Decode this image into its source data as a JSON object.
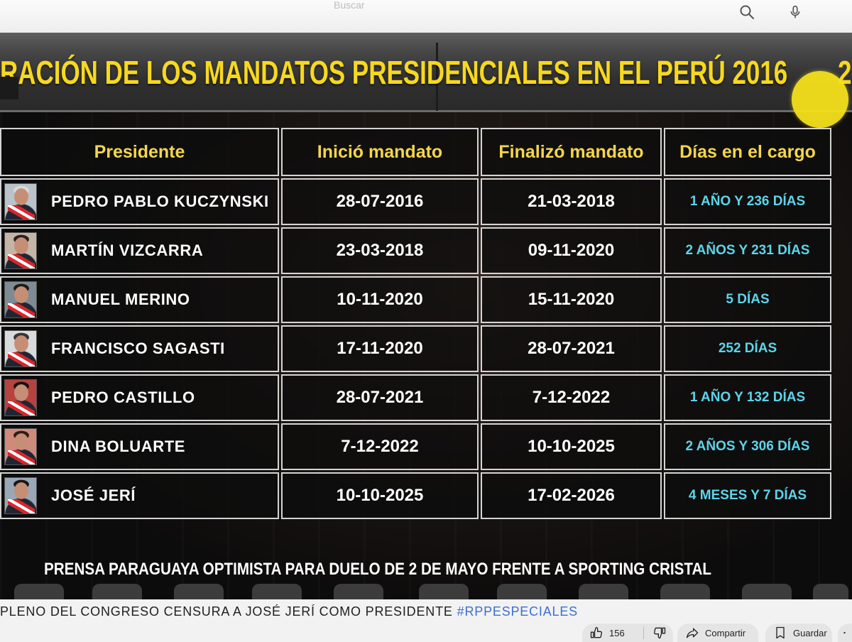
{
  "header": {
    "search_placeholder": "Buscar"
  },
  "video": {
    "banner_title": "RACIÓN DE LOS MANDATOS PRESIDENCIALES EN EL PERÚ 2016",
    "banner_title_tail": "2",
    "table": {
      "headers": [
        "Presidente",
        "Inició mandato",
        "Finalizó mandato",
        "Días en el cargo"
      ],
      "rows": [
        {
          "name": "PEDRO PABLO KUCZYNSKI",
          "start": "28-07-2016",
          "end": "21-03-2018",
          "days": "1 AÑO Y 236 DÍAS"
        },
        {
          "name": "MARTÍN VIZCARRA",
          "start": "23-03-2018",
          "end": "09-11-2020",
          "days": "2 AÑOS Y 231 DÍAS"
        },
        {
          "name": "MANUEL MERINO",
          "start": "10-11-2020",
          "end": "15-11-2020",
          "days": "5 DÍAS"
        },
        {
          "name": "FRANCISCO SAGASTI",
          "start": "17-11-2020",
          "end": "28-07-2021",
          "days": "252 DÍAS"
        },
        {
          "name": "PEDRO CASTILLO",
          "start": "28-07-2021",
          "end": "7-12-2022",
          "days": "1 AÑO Y 132 DÍAS"
        },
        {
          "name": "DINA BOLUARTE",
          "start": "7-12-2022",
          "end": "10-10-2025",
          "days": "2 AÑOS Y 306 DÍAS"
        },
        {
          "name": "JOSÉ JERÍ",
          "start": "10-10-2025",
          "end": "17-02-2026",
          "days": "4 MESES Y 7 DÍAS"
        }
      ]
    },
    "ticker": "PRENSA PARAGUAYA OPTIMISTA PARA DUELO DE 2 DE MAYO FRENTE A SPORTING CRISTAL"
  },
  "video_title": {
    "text": "PLENO DEL CONGRESO CENSURA A JOSÉ JERÍ COMO PRESIDENTE",
    "hashtag": "#RPPESPECIALES"
  },
  "actions": {
    "like_count": "156",
    "share_label": "Compartir",
    "save_label": "Guardar"
  },
  "icons": {
    "search": "search-icon",
    "mic": "mic-icon",
    "like": "thumbs-up-icon",
    "dislike": "thumbs-down-icon",
    "share": "share-arrow-icon",
    "save": "bookmark-icon",
    "more": "more-icon"
  },
  "colors": {
    "title_yellow": "#f7d81f",
    "header_yellow": "#f4d64b",
    "days_cyan": "#5dd4ea",
    "hashtag_blue": "#3c6fd4",
    "cursor_highlight": "#f5e11c"
  }
}
